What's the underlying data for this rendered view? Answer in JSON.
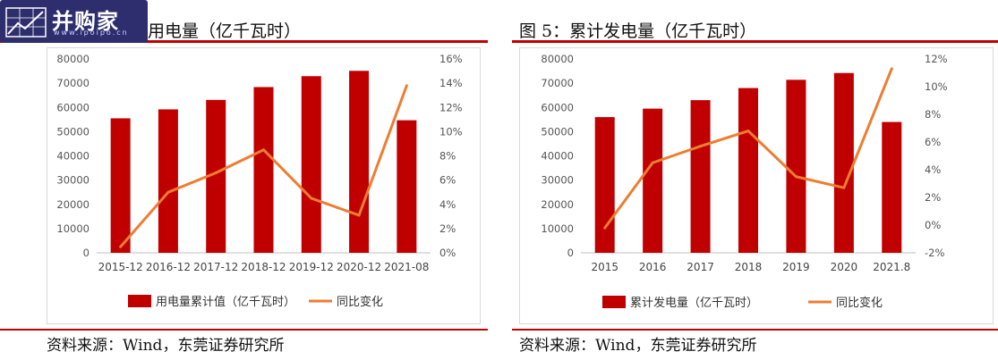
{
  "watermark": {
    "text": "并购家",
    "url": "www.ipoipo.cn"
  },
  "colors": {
    "bar": "#c00000",
    "line": "#ed7d31",
    "rule": "#c00000",
    "axis_text": "#595959"
  },
  "chart_data": [
    {
      "type": "bar",
      "title": "用电量（亿千瓦时）",
      "categories": [
        "2015-12",
        "2016-12",
        "2017-12",
        "2018-12",
        "2019-12",
        "2020-12",
        "2021-08"
      ],
      "series": [
        {
          "name": "用电量累计值（亿千瓦时）",
          "type": "bar",
          "axis": "left",
          "values": [
            55500,
            59200,
            63100,
            68400,
            72900,
            75100,
            54700
          ]
        },
        {
          "name": "同比变化",
          "type": "line",
          "axis": "right",
          "values": [
            0.5,
            5.0,
            6.6,
            8.5,
            4.5,
            3.1,
            13.8
          ]
        }
      ],
      "left_axis": {
        "ylim": [
          0,
          80000
        ],
        "ticks": [
          "0",
          "10000",
          "20000",
          "30000",
          "40000",
          "50000",
          "60000",
          "70000",
          "80000"
        ]
      },
      "right_axis": {
        "ylim": [
          0,
          16
        ],
        "ticks": [
          "0%",
          "2%",
          "4%",
          "6%",
          "8%",
          "10%",
          "12%",
          "14%",
          "16%"
        ]
      },
      "legend_position": "bottom",
      "source": "资料来源：Wind，东莞证券研究所"
    },
    {
      "type": "bar",
      "title": "图 5：累计发电量（亿千瓦时）",
      "categories": [
        "2015",
        "2016",
        "2017",
        "2018",
        "2019",
        "2020",
        "2021.8"
      ],
      "series": [
        {
          "name": "累计发电量（亿千瓦时）",
          "type": "bar",
          "axis": "left",
          "values": [
            56000,
            59500,
            63000,
            68000,
            71400,
            74200,
            54000
          ]
        },
        {
          "name": "同比变化",
          "type": "line",
          "axis": "right",
          "values": [
            -0.2,
            4.5,
            5.7,
            6.8,
            3.5,
            2.7,
            11.3
          ]
        }
      ],
      "left_axis": {
        "ylim": [
          0,
          80000
        ],
        "ticks": [
          "0",
          "10000",
          "20000",
          "30000",
          "40000",
          "50000",
          "60000",
          "70000",
          "80000"
        ]
      },
      "right_axis": {
        "ylim": [
          -2,
          12
        ],
        "ticks": [
          "-2%",
          "0%",
          "2%",
          "4%",
          "6%",
          "8%",
          "10%",
          "12%"
        ]
      },
      "legend_position": "bottom",
      "source": "资料来源：Wind，东莞证券研究所"
    }
  ]
}
